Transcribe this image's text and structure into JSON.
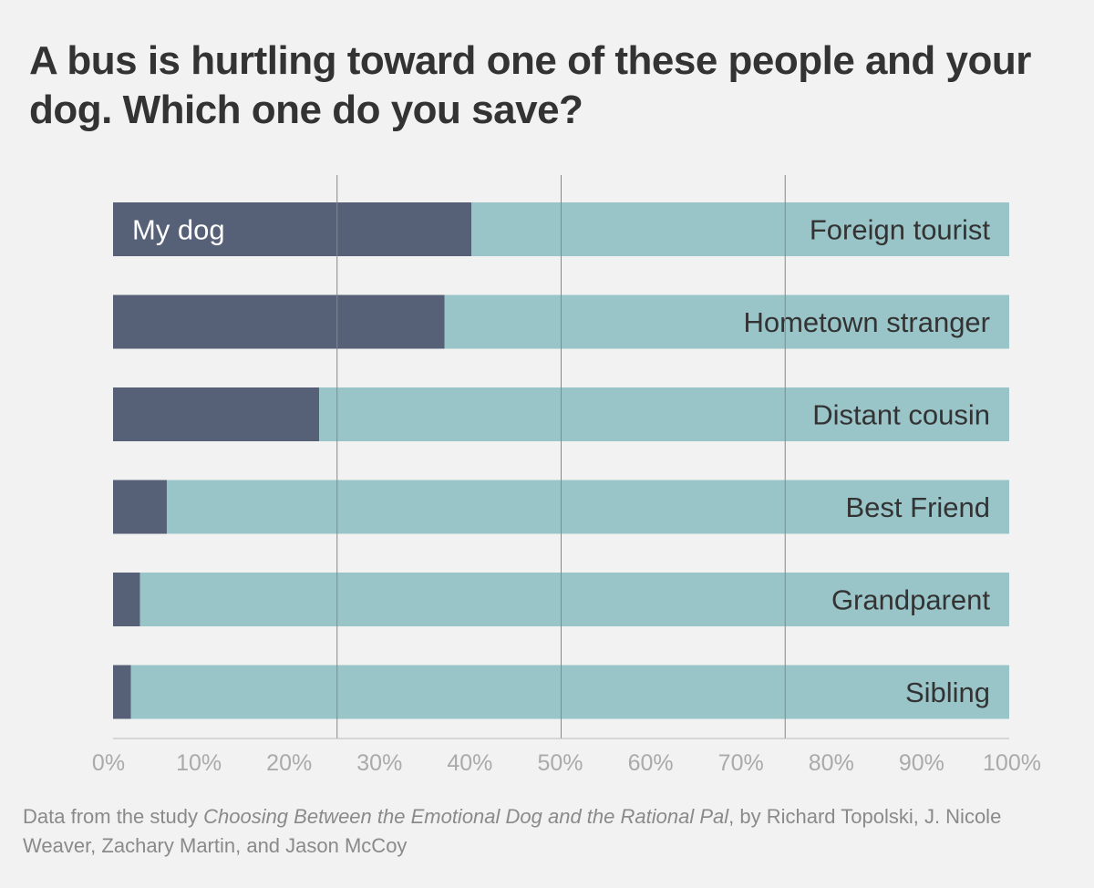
{
  "title": "A bus is hurtling toward one of these people and your dog. Which one do you save?",
  "source": {
    "prefix": "Data from the study ",
    "study": "Choosing Between the Emotional Dog and the Rational Pal",
    "suffix": ", by Richard Topolski, J. Nicole Weaver, Zachary Martin, and Jason McCoy"
  },
  "colors": {
    "dog": "#566178",
    "person": "#99c4c8",
    "background": "#f1f2f1",
    "gridline": "#888888",
    "tick": "#aaaaaa",
    "dogLabel": "#ffffff",
    "personLabel": "#333333"
  },
  "chart_data": {
    "type": "bar",
    "orientation": "horizontal",
    "stacked": true,
    "normalized": true,
    "dog_series_label": "My dog",
    "categories": [
      "Foreign tourist",
      "Hometown stranger",
      "Distant cousin",
      "Best Friend",
      "Grandparent",
      "Sibling"
    ],
    "series": [
      {
        "name": "My dog",
        "values": [
          40,
          37,
          23,
          6,
          3,
          2
        ]
      },
      {
        "name": "Person",
        "values": [
          60,
          63,
          77,
          94,
          97,
          98
        ]
      }
    ],
    "xlim": [
      0,
      100
    ],
    "x_ticks": [
      "0%",
      "10%",
      "20%",
      "30%",
      "40%",
      "50%",
      "60%",
      "70%",
      "80%",
      "90%",
      "100%"
    ],
    "gridlines_at": [
      25,
      50,
      75
    ],
    "xlabel": "",
    "ylabel": ""
  }
}
